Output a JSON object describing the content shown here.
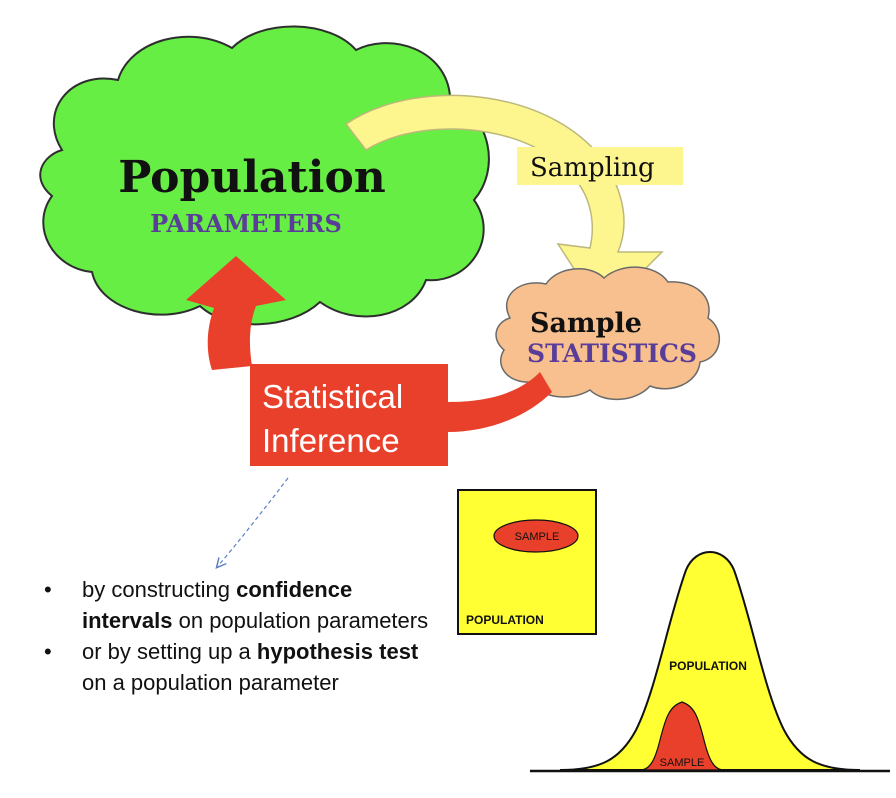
{
  "population": {
    "title": "Population",
    "subtitle": "PARAMETERS"
  },
  "sampling": {
    "label": "Sampling"
  },
  "sample": {
    "title": "Sample",
    "subtitle": "STATISTICS"
  },
  "inference": {
    "line1": "Statistical",
    "line2": "Inference"
  },
  "bullets": [
    {
      "pre": "by constructing ",
      "bold1": "confidence intervals",
      "mid": " on population parameters",
      "bold2": "",
      "post": ""
    },
    {
      "pre": "or by setting up a ",
      "bold1": "hypothesis test",
      "mid": " on a population parameter",
      "bold2": "",
      "post": ""
    }
  ],
  "box_diagram": {
    "sample_label": "SAMPLE",
    "population_label": "POPULATION"
  },
  "curve_diagram": {
    "population_label": "POPULATION",
    "sample_label": "SAMPLE"
  },
  "colors": {
    "population_cloud": "#66ee44",
    "sample_cloud": "#f7c08e",
    "sampling_arrow": "#fdf58e",
    "inference": "#e8402a",
    "subtitle_text": "#5a3d99",
    "yellow_fill": "#ffff33",
    "red_fill": "#e8402a"
  }
}
